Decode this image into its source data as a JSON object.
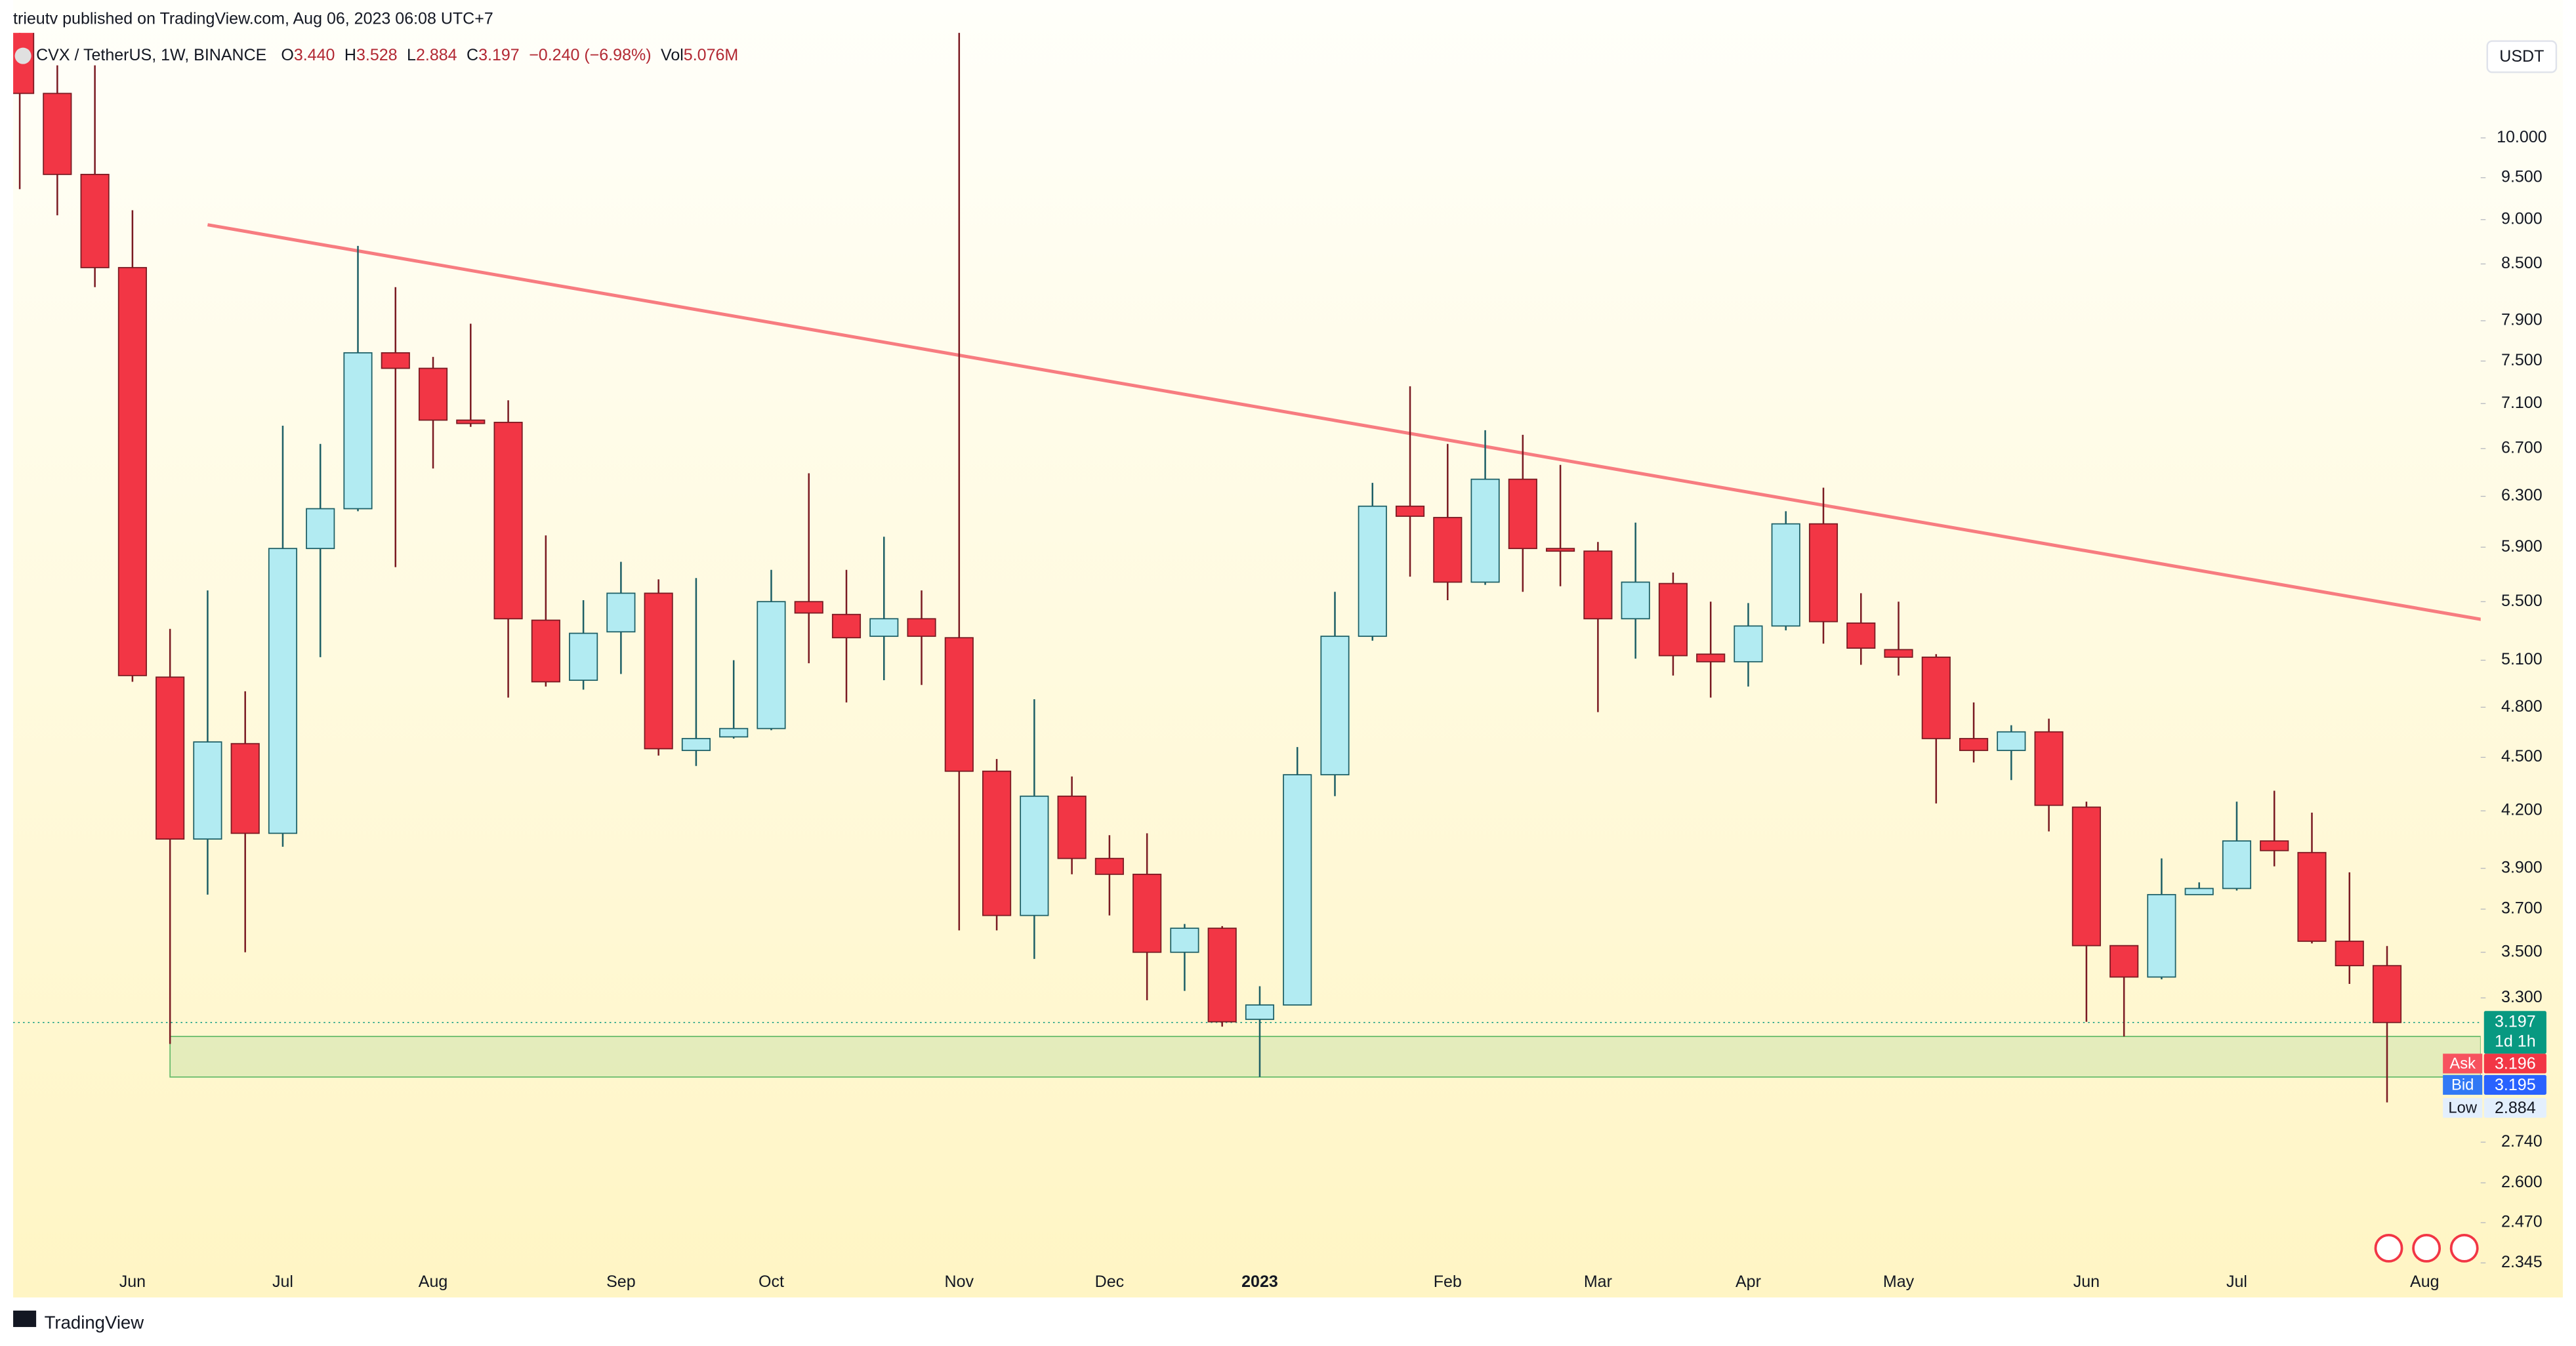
{
  "header": {
    "published": "trieutv published on TradingView.com, Aug 06, 2023 06:08 UTC+7",
    "symbol": "CVX / TetherUS, 1W, BINANCE",
    "ohlc": [
      {
        "label": "O",
        "value": "3.440"
      },
      {
        "label": "H",
        "value": "3.528"
      },
      {
        "label": "L",
        "value": "2.884"
      },
      {
        "label": "C",
        "value": "3.197"
      }
    ],
    "change": "−0.240 (−6.98%)",
    "volume_label": "Vol",
    "volume": "5.076M",
    "currency": "USDT"
  },
  "footer": {
    "brand": "TradingView"
  },
  "chart_data": {
    "type": "candlestick",
    "log_scale": true,
    "grid": false,
    "up_color": "#b2ebf2",
    "down_color": "#f23645",
    "categories": [
      null,
      null,
      null,
      "Jun",
      null,
      null,
      null,
      "Jul",
      null,
      null,
      null,
      "Aug",
      null,
      null,
      null,
      null,
      "Sep",
      null,
      null,
      null,
      "Oct",
      null,
      null,
      null,
      null,
      "Nov",
      null,
      null,
      null,
      "Dec",
      null,
      null,
      null,
      "2023",
      null,
      null,
      null,
      null,
      "Feb",
      null,
      null,
      null,
      "Mar",
      null,
      null,
      null,
      "Apr",
      null,
      null,
      null,
      "May",
      null,
      null,
      null,
      null,
      "Jun",
      null,
      null,
      null,
      "Jul",
      null,
      null,
      null,
      null,
      "Aug"
    ],
    "open": [
      11.6,
      10.59,
      9.54,
      8.46,
      4.99,
      4.05,
      4.58,
      4.08,
      5.89,
      6.2,
      7.58,
      7.43,
      6.95,
      6.93,
      5.37,
      4.97,
      5.29,
      5.56,
      4.54,
      4.62,
      4.67,
      5.5,
      5.41,
      5.26,
      5.38,
      5.25,
      4.42,
      3.67,
      4.28,
      3.95,
      3.87,
      3.5,
      3.61,
      3.21,
      3.27,
      4.4,
      5.26,
      6.22,
      6.13,
      5.64,
      6.44,
      5.89,
      5.87,
      5.38,
      5.63,
      5.14,
      5.09,
      5.33,
      6.08,
      5.35,
      5.17,
      5.12,
      4.61,
      4.54,
      4.65,
      4.22,
      3.53,
      3.39,
      3.77,
      3.8,
      4.04,
      3.98,
      3.55,
      3.44,
      null
    ],
    "high": [
      12.5,
      10.98,
      10.98,
      9.11,
      5.31,
      5.58,
      4.9,
      6.9,
      6.74,
      8.7,
      8.25,
      7.54,
      7.87,
      7.13,
      5.99,
      5.51,
      5.79,
      5.66,
      5.67,
      5.1,
      5.73,
      6.49,
      5.73,
      5.98,
      5.58,
      12.0,
      4.49,
      4.85,
      4.39,
      4.07,
      4.08,
      3.63,
      3.62,
      3.35,
      4.56,
      5.57,
      6.41,
      7.26,
      6.74,
      6.86,
      6.82,
      6.56,
      5.94,
      6.09,
      5.71,
      5.5,
      5.49,
      6.18,
      6.37,
      5.56,
      5.5,
      5.14,
      4.83,
      4.69,
      4.73,
      4.25,
      3.53,
      3.95,
      3.83,
      4.25,
      4.31,
      4.19,
      3.88,
      3.528,
      null
    ],
    "low": [
      9.36,
      9.05,
      8.25,
      4.96,
      3.11,
      3.77,
      3.5,
      4.01,
      5.12,
      6.18,
      5.75,
      6.53,
      6.89,
      4.86,
      4.93,
      4.91,
      5.01,
      4.51,
      4.45,
      4.61,
      4.66,
      5.08,
      4.83,
      4.97,
      4.94,
      3.6,
      3.6,
      3.47,
      3.87,
      3.67,
      3.29,
      3.33,
      3.18,
      2.98,
      3.27,
      4.28,
      5.23,
      5.68,
      5.51,
      5.62,
      5.57,
      5.61,
      4.77,
      5.11,
      5.0,
      4.86,
      4.93,
      5.3,
      5.21,
      5.07,
      5.0,
      4.24,
      4.47,
      4.37,
      4.09,
      3.2,
      3.14,
      3.38,
      3.77,
      3.79,
      3.91,
      3.54,
      3.36,
      2.884,
      null
    ],
    "close": [
      10.59,
      9.54,
      8.46,
      5.0,
      4.05,
      4.59,
      4.08,
      5.89,
      6.2,
      7.58,
      7.43,
      6.95,
      6.92,
      5.38,
      4.96,
      5.28,
      5.56,
      4.55,
      4.61,
      4.67,
      5.5,
      5.42,
      5.25,
      5.38,
      5.26,
      4.42,
      3.67,
      4.28,
      3.95,
      3.87,
      3.5,
      3.61,
      3.2,
      3.27,
      4.4,
      5.26,
      6.22,
      6.14,
      5.64,
      6.44,
      5.89,
      5.87,
      5.38,
      5.64,
      5.13,
      5.09,
      5.33,
      6.08,
      5.36,
      5.18,
      5.12,
      4.61,
      4.54,
      4.65,
      4.23,
      3.53,
      3.39,
      3.77,
      3.8,
      4.04,
      3.99,
      3.55,
      3.44,
      3.197,
      null
    ],
    "ylim": [
      2.33,
      11.45
    ],
    "yticks": [
      {
        "value": 2.345,
        "label": "2.345"
      },
      {
        "value": 2.47,
        "label": "2.470"
      },
      {
        "value": 2.6,
        "label": "2.600"
      },
      {
        "value": 2.74,
        "label": "2.740"
      },
      {
        "value": 3.3,
        "label": "3.300"
      },
      {
        "value": 3.5,
        "label": "3.500"
      },
      {
        "value": 3.7,
        "label": "3.700"
      },
      {
        "value": 3.9,
        "label": "3.900"
      },
      {
        "value": 4.2,
        "label": "4.200"
      },
      {
        "value": 4.5,
        "label": "4.500"
      },
      {
        "value": 4.8,
        "label": "4.800"
      },
      {
        "value": 5.1,
        "label": "5.100"
      },
      {
        "value": 5.5,
        "label": "5.500"
      },
      {
        "value": 5.9,
        "label": "5.900"
      },
      {
        "value": 6.3,
        "label": "6.300"
      },
      {
        "value": 6.7,
        "label": "6.700"
      },
      {
        "value": 7.1,
        "label": "7.100"
      },
      {
        "value": 7.5,
        "label": "7.500"
      },
      {
        "value": 7.9,
        "label": "7.900"
      },
      {
        "value": 8.5,
        "label": "8.500"
      },
      {
        "value": 9,
        "label": "9.000"
      },
      {
        "value": 9.5,
        "label": "9.500"
      },
      {
        "value": 10,
        "label": "10.000"
      }
    ],
    "trendline": {
      "color": "#f77c80",
      "from": [
        5,
        8.94
      ],
      "to": [
        63,
        5.49
      ],
      "extend": true
    },
    "zone": {
      "from": 4,
      "top": 3.14,
      "bottom": 2.98
    },
    "last_price": 3.197,
    "countdown": "1d 1h",
    "ask": {
      "label": "Ask",
      "value": 3.196
    },
    "bid": {
      "label": "Bid",
      "value": 3.195
    },
    "low_tag": {
      "label": "Low",
      "value": 2.884
    }
  }
}
